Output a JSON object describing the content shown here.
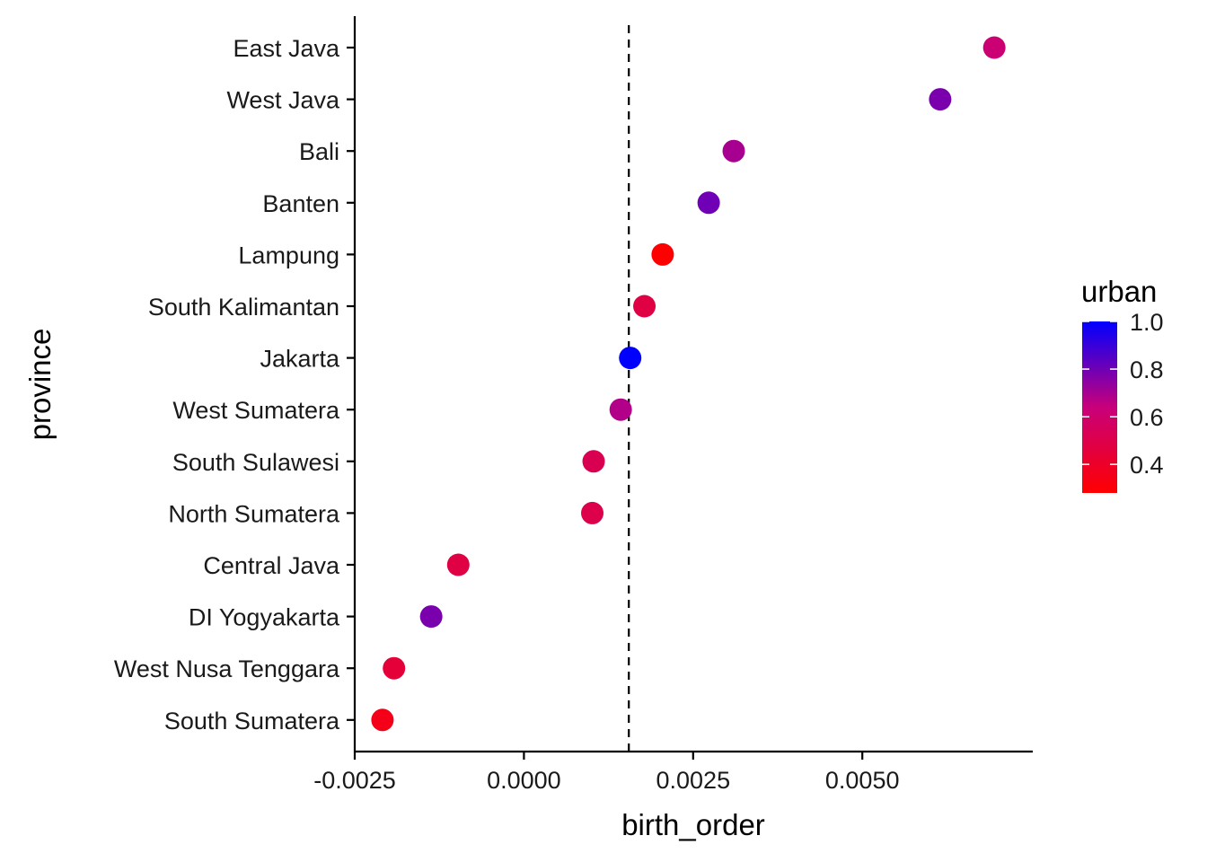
{
  "chart_data": {
    "type": "scatter",
    "title": "",
    "xlabel": "birth_order",
    "ylabel": "province",
    "xlim": [
      -0.0025,
      0.0074
    ],
    "x_ticks": [
      -0.0025,
      0.0,
      0.0025,
      0.005
    ],
    "x_tick_labels": [
      "-0.0025",
      "0.0000",
      "0.0025",
      "0.0050"
    ],
    "grid": false,
    "reference_line": {
      "x": 0.00155,
      "style": "dashed",
      "color": "#000000"
    },
    "categories": [
      "East Java",
      "West Java",
      "Bali",
      "Banten",
      "Lampung",
      "South Kalimantan",
      "Jakarta",
      "West Sumatera",
      "South Sulawesi",
      "North Sumatera",
      "Central Java",
      "DI Yogyakarta",
      "West Nusa Tenggara",
      "South Sumatera"
    ],
    "points": [
      {
        "province": "East Java",
        "x": 0.00695,
        "urban": 0.62
      },
      {
        "province": "West Java",
        "x": 0.00615,
        "urban": 0.78
      },
      {
        "province": "Bali",
        "x": 0.0031,
        "urban": 0.7
      },
      {
        "province": "Banten",
        "x": 0.00273,
        "urban": 0.8
      },
      {
        "province": "Lampung",
        "x": 0.00205,
        "urban": 0.28
      },
      {
        "province": "South Kalimantan",
        "x": 0.00178,
        "urban": 0.48
      },
      {
        "province": "Jakarta",
        "x": 0.00157,
        "urban": 1.0
      },
      {
        "province": "West Sumatera",
        "x": 0.00143,
        "urban": 0.68
      },
      {
        "province": "South Sulawesi",
        "x": 0.00103,
        "urban": 0.52
      },
      {
        "province": "North Sumatera",
        "x": 0.00101,
        "urban": 0.5
      },
      {
        "province": "Central Java",
        "x": -0.00097,
        "urban": 0.48
      },
      {
        "province": "DI Yogyakarta",
        "x": -0.00137,
        "urban": 0.78
      },
      {
        "province": "West Nusa Tenggara",
        "x": -0.00192,
        "urban": 0.45
      },
      {
        "province": "South Sumatera",
        "x": -0.00209,
        "urban": 0.35
      }
    ],
    "color_scale": {
      "name": "urban",
      "min": 0.28,
      "max": 1.0,
      "low_color": "#ff0000",
      "high_color": "#0000ff",
      "ticks": [
        1.0,
        0.8,
        0.6,
        0.4
      ],
      "tick_labels": [
        "1.0",
        "0.8",
        "0.6",
        "0.4"
      ],
      "placement": "right"
    }
  }
}
